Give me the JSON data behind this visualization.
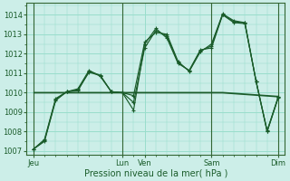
{
  "bg_color": "#cceee8",
  "grid_color": "#99ddcc",
  "line_color": "#1a5c2a",
  "xlabel": "Pression niveau de la mer( hPa )",
  "ylim": [
    1006.8,
    1014.6
  ],
  "yticks": [
    1007,
    1008,
    1009,
    1010,
    1011,
    1012,
    1013,
    1014
  ],
  "xtick_labels": [
    "Jeu",
    "",
    "Lun",
    "Ven",
    "",
    "Sam",
    "",
    "Dim"
  ],
  "xtick_positions": [
    0,
    2,
    4,
    5,
    6.5,
    8,
    9.5,
    11
  ],
  "vline_positions": [
    0,
    4,
    8,
    11
  ],
  "series1_x": [
    0,
    0.5,
    1.0,
    1.5,
    2.0,
    2.5,
    3.0,
    3.5,
    4.0,
    4.5,
    5.0,
    5.5,
    6.0,
    6.5,
    7.0,
    7.5,
    8.0,
    8.5,
    9.0,
    9.5,
    10.0,
    10.5,
    11.0
  ],
  "series1_y": [
    1007.1,
    1007.5,
    1009.6,
    1010.05,
    1010.1,
    1011.1,
    1010.9,
    1010.05,
    1010.0,
    1009.1,
    1012.5,
    1013.3,
    1012.8,
    1011.5,
    1011.15,
    1012.2,
    1012.3,
    1014.0,
    1013.6,
    1013.55,
    1010.6,
    1008.0,
    1009.75
  ],
  "series2_x": [
    0,
    0.5,
    1.0,
    1.5,
    2.0,
    2.5,
    3.0,
    3.5,
    4.0,
    4.5,
    5.0,
    5.5,
    6.0,
    6.5,
    7.0,
    7.5,
    8.0,
    8.5,
    9.0,
    9.5,
    10.0,
    10.5,
    11.0
  ],
  "series2_y": [
    1007.1,
    1007.6,
    1009.7,
    1010.05,
    1010.2,
    1011.15,
    1010.85,
    1010.05,
    1010.0,
    1009.85,
    1012.6,
    1013.1,
    1013.0,
    1011.6,
    1011.1,
    1012.1,
    1012.5,
    1014.05,
    1013.7,
    1013.6,
    1010.6,
    1008.05,
    1009.8
  ],
  "series3_x": [
    0,
    0.5,
    1.0,
    1.5,
    2.0,
    2.5,
    3.0,
    3.5,
    4.0,
    4.5,
    5.0,
    5.5,
    6.0,
    6.5,
    7.0,
    7.5,
    8.0,
    8.5,
    9.0,
    9.5,
    10.0,
    10.5,
    11.0
  ],
  "series3_y": [
    1007.1,
    1007.55,
    1009.65,
    1010.05,
    1010.15,
    1011.05,
    1010.88,
    1010.05,
    1010.0,
    1009.5,
    1012.3,
    1013.2,
    1012.9,
    1011.55,
    1011.12,
    1012.15,
    1012.4,
    1014.02,
    1013.65,
    1013.58,
    1010.6,
    1008.02,
    1009.77
  ],
  "flat_line_x": [
    0,
    4.0,
    8.5,
    11.0
  ],
  "flat_line_y": [
    1010.0,
    1010.0,
    1010.0,
    1009.8
  ]
}
